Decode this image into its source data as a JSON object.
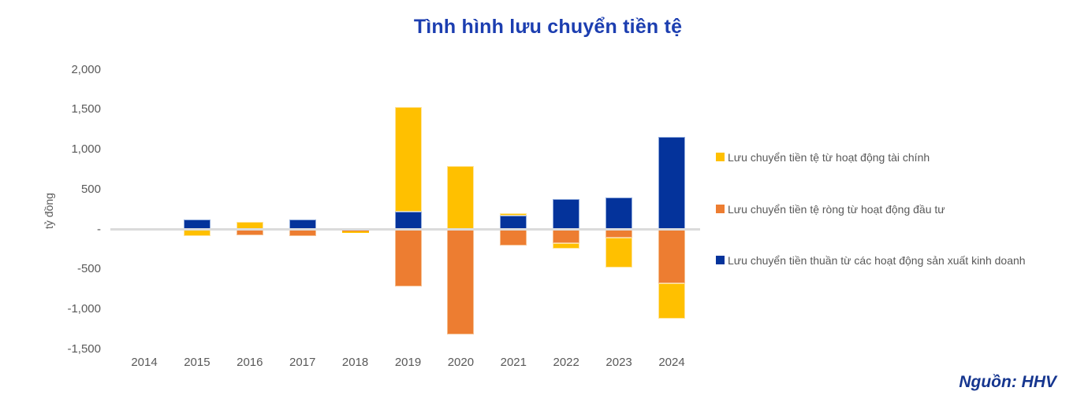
{
  "title": "Tình hình lưu chuyển tiền tệ",
  "y_axis_label": "tỷ đồng",
  "source": "Nguồn: HHV",
  "colors": {
    "yellow": "#FFC000",
    "orange": "#ED7D31",
    "blue": "#04339B",
    "title": "#1c3eb0",
    "source": "#16368f",
    "axis_text": "#595959",
    "zero_line": "#dbdbdb"
  },
  "chart_data": {
    "type": "bar",
    "stacked": true,
    "grid": false,
    "legend_position": "right",
    "unit": "tỷ đồng",
    "categories": [
      "2014",
      "2015",
      "2016",
      "2017",
      "2018",
      "2019",
      "2020",
      "2021",
      "2022",
      "2023",
      "2024"
    ],
    "series": [
      {
        "name": "Lưu chuyển tiền tệ từ hoạt động tài chính",
        "color_key": "yellow",
        "values": [
          8,
          -80,
          90,
          0,
          -20,
          1310,
          790,
          30,
          -70,
          -380,
          -440
        ]
      },
      {
        "name": "Lưu chuyển tiền tệ ròng từ hoạt động đầu tư",
        "color_key": "orange",
        "values": [
          -5,
          0,
          -70,
          -80,
          -10,
          -710,
          -1320,
          -200,
          -170,
          -100,
          -680
        ]
      },
      {
        "name": "Lưu chuyển tiền thuần từ các hoạt động sản xuất kinh doanh",
        "color_key": "blue",
        "values": [
          4,
          125,
          0,
          120,
          -15,
          225,
          0,
          170,
          375,
          400,
          1160
        ]
      }
    ],
    "ylim": [
      -1500,
      2000
    ],
    "y_ticks": [
      {
        "value": 2000,
        "label": "2,000"
      },
      {
        "value": 1500,
        "label": "1,500"
      },
      {
        "value": 1000,
        "label": "1,000"
      },
      {
        "value": 500,
        "label": "500"
      },
      {
        "value": 0,
        "label": "-"
      },
      {
        "value": -500,
        "label": "-500"
      },
      {
        "value": -1000,
        "label": "-1,000"
      },
      {
        "value": -1500,
        "label": "-1,500"
      }
    ]
  }
}
